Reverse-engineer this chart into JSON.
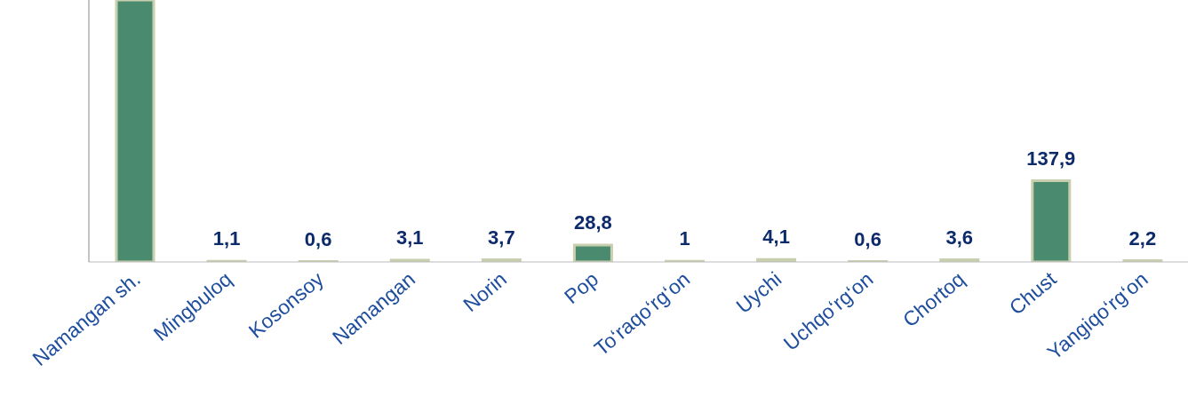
{
  "chart_data": {
    "type": "bar",
    "categories": [
      "Namangan sh.",
      "Mingbuloq",
      "Kosonsoy",
      "Namangan",
      "Norin",
      "Pop",
      "To‘raqo‘rg‘on",
      "Uychi",
      "Uchqo‘rg‘on",
      "Chortoq",
      "Chust",
      "Yangiqo‘rg‘on"
    ],
    "values": [
      445,
      1.1,
      0.6,
      3.1,
      3.7,
      28.8,
      1,
      4.1,
      0.6,
      3.6,
      137.9,
      2.2
    ],
    "value_labels": [
      null,
      "1,1",
      "0,6",
      "3,1",
      "3,7",
      "28,8",
      "1",
      "4,1",
      "0,6",
      "3,6",
      "137,9",
      "2,2"
    ],
    "color": "#4a8a6e",
    "ylim": [
      0,
      445
    ],
    "tick_labels": "x"
  }
}
